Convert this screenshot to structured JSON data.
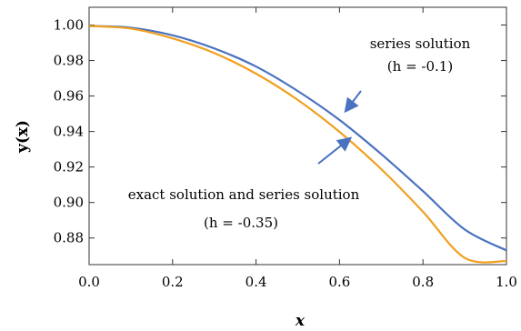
{
  "chart_data": {
    "type": "line",
    "xlabel": "x",
    "ylabel": "y(x)",
    "xlim": [
      0,
      1
    ],
    "ylim": [
      0.865,
      1.01
    ],
    "x_ticks": [
      "0.0",
      "0.2",
      "0.4",
      "0.6",
      "0.8",
      "1.0"
    ],
    "y_ticks": [
      "0.88",
      "0.90",
      "0.92",
      "0.94",
      "0.96",
      "0.98",
      "1.00"
    ],
    "grid": false,
    "series": [
      {
        "color": "#4a72c0",
        "x": [
          0,
          0.1,
          0.2,
          0.3,
          0.4,
          0.5,
          0.6,
          0.7,
          0.8,
          0.9,
          1.0
        ],
        "y": [
          0.9995,
          0.9985,
          0.9942,
          0.9868,
          0.9766,
          0.9628,
          0.9465,
          0.9273,
          0.9064,
          0.8848,
          0.873
        ]
      },
      {
        "color": "#f0a020",
        "x": [
          0,
          0.1,
          0.2,
          0.3,
          0.4,
          0.5,
          0.6,
          0.7,
          0.8,
          0.9,
          1.0
        ],
        "y": [
          0.9995,
          0.998,
          0.9925,
          0.9842,
          0.9726,
          0.9578,
          0.9398,
          0.9188,
          0.8948,
          0.8688,
          0.867
        ]
      }
    ],
    "annotations": [
      {
        "line1": "series solution",
        "line2": "(h = -0.1)"
      },
      {
        "line1": "exact solution and series solution",
        "line2": "(h = -0.35)"
      }
    ]
  }
}
